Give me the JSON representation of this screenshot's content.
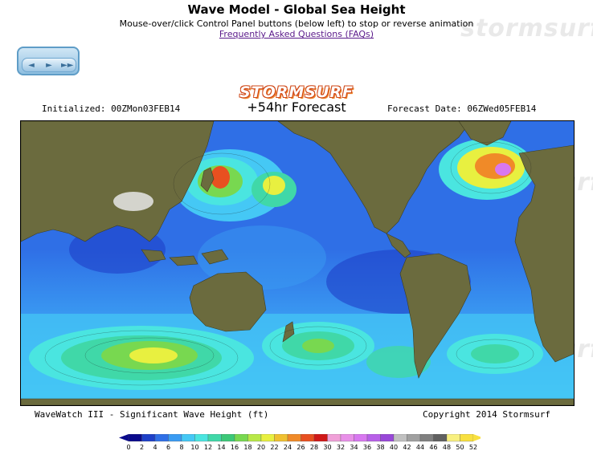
{
  "header": {
    "title": "Wave Model - Global Sea Height",
    "subtitle": "Mouse-over/click Control Panel buttons (below left) to stop or reverse animation",
    "faq_link": "Frequently Asked Questions (FAQs)"
  },
  "watermark": "stormsurf",
  "control_panel": {
    "buttons": [
      "◄",
      "►",
      "►►"
    ]
  },
  "map_header": {
    "logo": "STORMSURF",
    "initialized": "Initialized: 00ZMon03FEB14",
    "forecast": "+54hr Forecast",
    "forecast_date": "Forecast Date: 06ZWed05FEB14"
  },
  "footer": {
    "model": "WaveWatch III - Significant Wave Height (ft)",
    "copyright": "Copyright 2014 Stormsurf"
  },
  "legend": {
    "labels": [
      "0",
      "2",
      "4",
      "6",
      "8",
      "10",
      "12",
      "14",
      "16",
      "18",
      "20",
      "22",
      "24",
      "26",
      "28",
      "30",
      "32",
      "34",
      "36",
      "38",
      "40",
      "42",
      "44",
      "46",
      "48",
      "50",
      "52"
    ],
    "colors": [
      "#0a0a8c",
      "#1e40c8",
      "#2f6fe6",
      "#3a9bf2",
      "#45c8f5",
      "#4ae5e0",
      "#40d8a8",
      "#3cc878",
      "#78d850",
      "#b8e848",
      "#e8f040",
      "#f0c030",
      "#f08a28",
      "#e85020",
      "#d01818",
      "#f0a0d8",
      "#e890e8",
      "#d878f0",
      "#b860e8",
      "#9848d8",
      "#c0c0c0",
      "#a0a0a0",
      "#808080",
      "#606060",
      "#f8f080",
      "#f8e040"
    ]
  },
  "colors": {
    "land": "#6b6b3e",
    "ocean_deep": "#1e40c8",
    "ocean_mid": "#3a9bf2",
    "ocean_light": "#4ae5e0"
  }
}
